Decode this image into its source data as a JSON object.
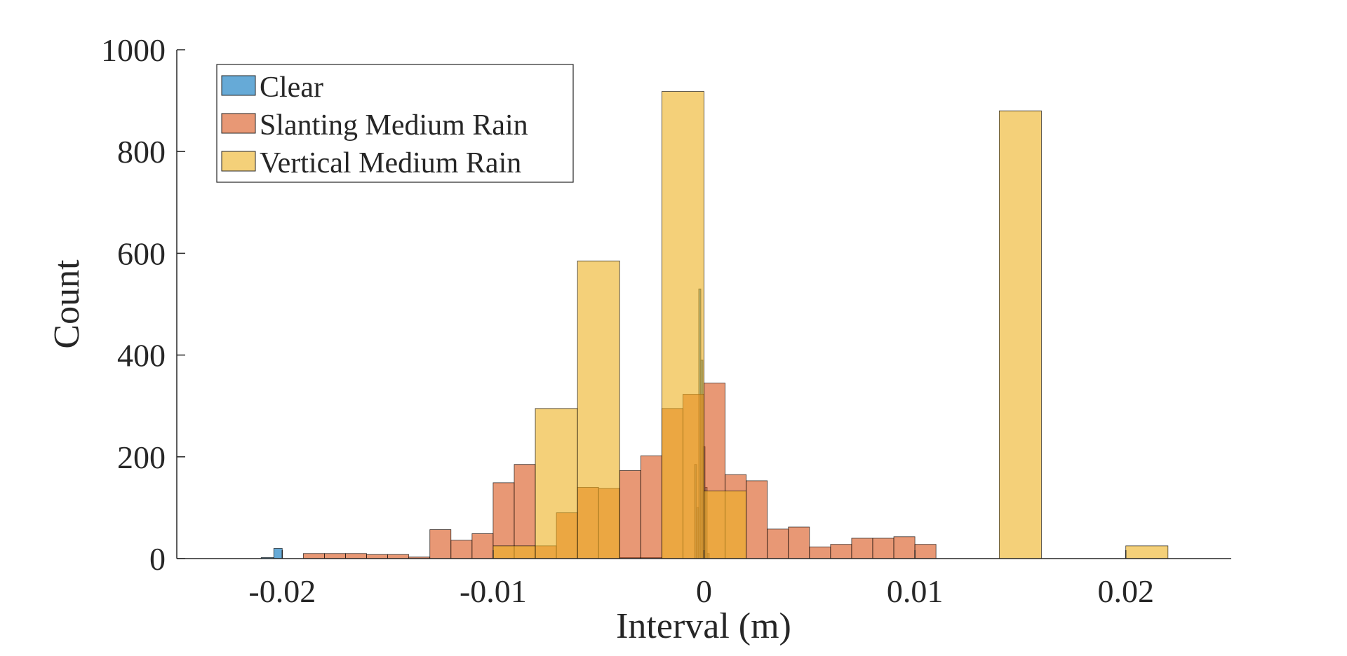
{
  "chart_data": {
    "type": "histogram",
    "xlabel": "Interval (m)",
    "ylabel": "Count",
    "xlim": [
      -0.025,
      0.025
    ],
    "ylim": [
      0,
      1000
    ],
    "x_ticks": [
      -0.02,
      -0.01,
      0,
      0.01,
      0.02
    ],
    "x_tick_labels": [
      "-0.02",
      "-0.01",
      "0",
      "0.01",
      "0.02"
    ],
    "y_ticks": [
      0,
      200,
      400,
      600,
      800,
      1000
    ],
    "y_tick_labels": [
      "0",
      "200",
      "400",
      "600",
      "800",
      "1000"
    ],
    "legend_position": "top-left",
    "series": [
      {
        "name": "Clear",
        "color": "#0072BD",
        "bins": [
          {
            "x0": -0.021,
            "x1": -0.0204,
            "count": 2
          },
          {
            "x0": -0.0204,
            "x1": -0.02,
            "count": 20
          },
          {
            "x0": -0.004,
            "x1": -0.003,
            "count": 2
          },
          {
            "x0": -0.003,
            "x1": -0.002,
            "count": 2
          },
          {
            "x0": -0.00045,
            "x1": -0.00035,
            "count": 185
          },
          {
            "x0": -0.00035,
            "x1": -0.00025,
            "count": 100
          },
          {
            "x0": -0.00025,
            "x1": -0.00015,
            "count": 530
          },
          {
            "x0": -0.00015,
            "x1": -5e-05,
            "count": 390
          },
          {
            "x0": -5e-05,
            "x1": 5e-05,
            "count": 220
          },
          {
            "x0": 5e-05,
            "x1": 0.00015,
            "count": 140
          },
          {
            "x0": 0.00015,
            "x1": 0.00025,
            "count": 10
          }
        ]
      },
      {
        "name": "Slanting Medium Rain",
        "color": "#D95319",
        "bin_start": -0.019,
        "bin_width": 0.001,
        "counts": [
          10,
          10,
          10,
          8,
          8,
          3,
          57,
          36,
          49,
          149,
          185,
          25,
          90,
          140,
          138,
          173,
          202,
          295,
          323,
          345,
          165,
          153,
          58,
          62,
          23,
          28,
          40,
          40,
          43,
          28
        ]
      },
      {
        "name": "Vertical Medium Rain",
        "color": "#EDB120",
        "bin_start": -0.01,
        "bin_width": 0.002,
        "counts": [
          25,
          295,
          585,
          0,
          918,
          133,
          0,
          0,
          0,
          0,
          0,
          0,
          880,
          0,
          0,
          25
        ]
      }
    ]
  }
}
